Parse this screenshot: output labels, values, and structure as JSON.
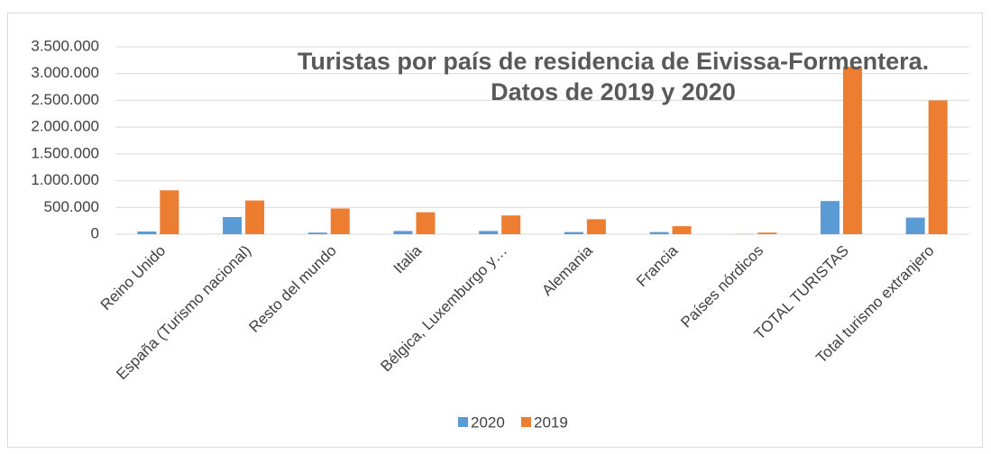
{
  "chart_data": {
    "type": "bar",
    "title": [
      "Turistas por país de residencia de Eivissa-Formentera.",
      "Datos de 2019 y 2020"
    ],
    "categories": [
      "Reino Unido",
      "España (Turismo nacional)",
      "Resto del mundo",
      "Italia",
      "Bélgica, Luxemburgo y…",
      "Alemania",
      "Francia",
      "Países nórdicos",
      "TOTAL TURISTAS",
      "Total turismo extranjero"
    ],
    "series": [
      {
        "name": "2020",
        "color": "#5b9bd5",
        "values": [
          50000,
          320000,
          30000,
          60000,
          60000,
          40000,
          40000,
          5000,
          620000,
          310000
        ]
      },
      {
        "name": "2019",
        "color": "#ed7d31",
        "values": [
          820000,
          630000,
          480000,
          410000,
          350000,
          280000,
          150000,
          30000,
          3130000,
          2500000
        ]
      }
    ],
    "ylim": [
      0,
      3500000
    ],
    "yticks": [
      0,
      {
        "value": 500000,
        "label": "500.000"
      },
      {
        "value": 1000000,
        "label": "1.000.000"
      },
      {
        "value": 1500000,
        "label": "1.500.000"
      },
      {
        "value": 2000000,
        "label": "2.000.000"
      },
      {
        "value": 2500000,
        "label": "2.500.000"
      },
      {
        "value": 3000000,
        "label": "3.000.000"
      },
      {
        "value": 3500000,
        "label": "3.500.000"
      }
    ],
    "grid": true,
    "legend": "bottom"
  }
}
